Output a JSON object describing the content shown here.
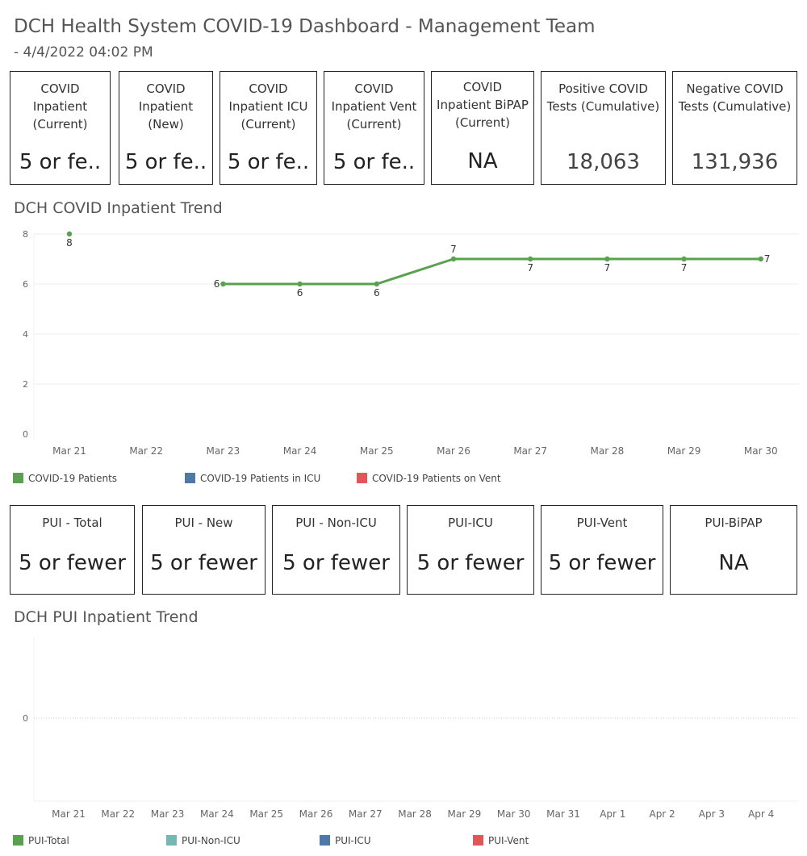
{
  "header": {
    "title": "DCH Health System COVID-19 Dashboard - Management Team",
    "subtitle": " - 4/4/2022 04:02 PM"
  },
  "covid_kpis": [
    {
      "label": "COVID Inpatient (Current)",
      "value": "5 or fe.."
    },
    {
      "label": "COVID Inpatient (New)",
      "value": "5 or fe.."
    },
    {
      "label": "COVID Inpatient ICU (Current)",
      "value": "5 or fe.."
    },
    {
      "label": "COVID Inpatient Vent (Current)",
      "value": "5 or fe.."
    },
    {
      "label": "COVID Inpatient BiPAP (Current)",
      "value": "NA"
    },
    {
      "label": "Positive COVID Tests (Cumulative)",
      "value": "18,063"
    },
    {
      "label": "Negative COVID Tests (Cumulative)",
      "value": "131,936"
    }
  ],
  "pui_kpis": [
    {
      "label": "PUI - Total",
      "value": "5 or fewer"
    },
    {
      "label": "PUI - New",
      "value": "5 or fewer"
    },
    {
      "label": "PUI - Non-ICU",
      "value": "5 or fewer"
    },
    {
      "label": "PUI-ICU",
      "value": "5 or fewer"
    },
    {
      "label": "PUI-Vent",
      "value": "5 or fewer"
    },
    {
      "label": "PUI-BiPAP",
      "value": "NA"
    }
  ],
  "covid_trend": {
    "title": "DCH COVID Inpatient Trend",
    "legend": [
      {
        "label": "COVID-19 Patients",
        "color": "#59a14f"
      },
      {
        "label": "COVID-19 Patients in ICU",
        "color": "#4e79a7"
      },
      {
        "label": "COVID-19 Patients on Vent",
        "color": "#e15759"
      }
    ]
  },
  "pui_trend": {
    "title": "DCH PUI Inpatient Trend",
    "legend": [
      {
        "label": "PUI-Total",
        "color": "#59a14f"
      },
      {
        "label": "PUI-Non-ICU",
        "color": "#76b7b2"
      },
      {
        "label": "PUI-ICU",
        "color": "#4e79a7"
      },
      {
        "label": "PUI-Vent",
        "color": "#e15759"
      }
    ]
  },
  "chart_data": [
    {
      "type": "line",
      "title": "DCH COVID Inpatient Trend",
      "categories": [
        "Mar 21",
        "Mar 22",
        "Mar 23",
        "Mar 24",
        "Mar 25",
        "Mar 26",
        "Mar 27",
        "Mar 28",
        "Mar 29",
        "Mar 30"
      ],
      "yticks": [
        0,
        2,
        4,
        6,
        8
      ],
      "ylim": [
        0,
        8
      ],
      "grid": true,
      "legend_position": "bottom",
      "series": [
        {
          "name": "COVID-19 Patients",
          "color": "#59a14f",
          "values": [
            8,
            null,
            6,
            6,
            6,
            7,
            7,
            7,
            7,
            7
          ]
        }
      ]
    },
    {
      "type": "line",
      "title": "DCH PUI Inpatient Trend",
      "categories": [
        "Mar 21",
        "Mar 22",
        "Mar 23",
        "Mar 24",
        "Mar 25",
        "Mar 26",
        "Mar 27",
        "Mar 28",
        "Mar 29",
        "Mar 30",
        "Mar 31",
        "Apr 1",
        "Apr 2",
        "Apr 3",
        "Apr 4"
      ],
      "yticks": [
        0
      ],
      "grid": true,
      "legend_position": "bottom",
      "series": []
    }
  ]
}
